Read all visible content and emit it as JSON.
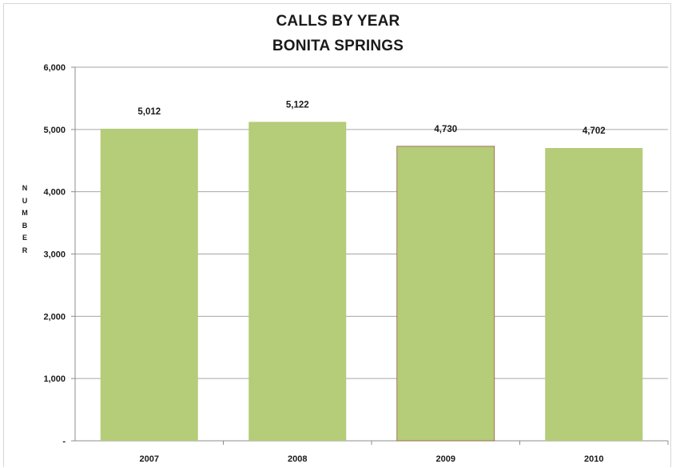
{
  "chart_data": {
    "type": "bar",
    "title": "CALLS BY YEAR",
    "subtitle": "BONITA SPRINGS",
    "ylabel": "NUMBER",
    "xlabel": "",
    "categories": [
      "2007",
      "2008",
      "2009",
      "2010"
    ],
    "values": [
      5012,
      5122,
      4730,
      4702
    ],
    "data_labels": [
      "5,012",
      "5,122",
      "4,730",
      "4,702"
    ],
    "ylim": [
      0,
      6000
    ],
    "yticks": [
      0,
      1000,
      2000,
      3000,
      4000,
      5000,
      6000
    ],
    "ytick_labels": [
      "-",
      "1,000",
      "2,000",
      "3,000",
      "4,000",
      "5,000",
      "6,000"
    ],
    "grid": true,
    "legend": "none",
    "bar_color": "#b5cc78",
    "grid_color": "#a6a6a6"
  }
}
